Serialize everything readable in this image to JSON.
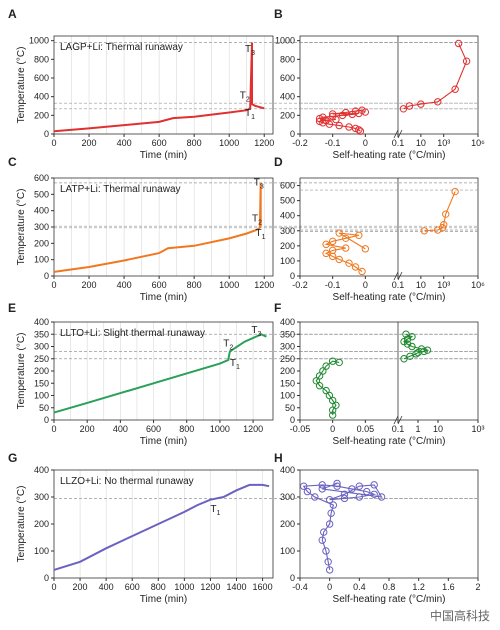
{
  "panels": [
    {
      "id": "A",
      "type": "line",
      "color": "#e03030",
      "annotation": "LAGP+Li: Thermal runaway",
      "xlabel": "Time (min)",
      "ylabel": "Temperature (°C)",
      "xlim": [
        0,
        1250
      ],
      "ylim": [
        0,
        1050
      ],
      "xticks": [
        0,
        200,
        400,
        600,
        800,
        1000,
        1200
      ],
      "yticks": [
        0,
        200,
        400,
        600,
        800,
        1000
      ],
      "vlines": [
        100,
        200,
        300,
        400,
        500,
        600,
        700,
        800,
        900,
        1000,
        1100,
        1200
      ],
      "hlines": [
        270,
        330,
        980
      ],
      "points": [
        [
          0,
          30
        ],
        [
          200,
          60
        ],
        [
          400,
          95
        ],
        [
          600,
          130
        ],
        [
          680,
          170
        ],
        [
          800,
          185
        ],
        [
          1000,
          230
        ],
        [
          1100,
          255
        ],
        [
          1110,
          265
        ],
        [
          1120,
          280
        ],
        [
          1130,
          980
        ],
        [
          1130,
          320
        ],
        [
          1150,
          300
        ],
        [
          1200,
          275
        ]
      ],
      "labels": [
        {
          "text": "T3",
          "x": 1090,
          "y": 880
        },
        {
          "text": "T2",
          "x": 1060,
          "y": 380
        },
        {
          "text": "T1",
          "x": 1090,
          "y": 195
        }
      ]
    },
    {
      "id": "B",
      "type": "scatter",
      "color": "#e03030",
      "xlabel": "Self-heating rate (°C/min)",
      "ylim": [
        0,
        1050
      ],
      "yticks": [
        0,
        200,
        400,
        600,
        800,
        1000
      ],
      "left": {
        "xlim": [
          -0.2,
          0.1
        ],
        "xticks": [
          -0.2,
          -0.1,
          0.0,
          0.1
        ],
        "points": [
          [
            -0.015,
            30
          ],
          [
            -0.02,
            45
          ],
          [
            -0.03,
            60
          ],
          [
            -0.05,
            75
          ],
          [
            -0.08,
            90
          ],
          [
            -0.11,
            105
          ],
          [
            -0.13,
            120
          ],
          [
            -0.14,
            135
          ],
          [
            -0.12,
            145
          ],
          [
            -0.09,
            155
          ],
          [
            -0.14,
            165
          ],
          [
            -0.13,
            180
          ],
          [
            -0.1,
            190
          ],
          [
            -0.07,
            200
          ],
          [
            -0.04,
            210
          ],
          [
            -0.02,
            220
          ],
          [
            -0.1,
            215
          ],
          [
            -0.06,
            230
          ],
          [
            -0.03,
            245
          ],
          [
            -0.01,
            255
          ],
          [
            0.0,
            235
          ]
        ]
      },
      "right": {
        "xlim_log": [
          -1,
          6
        ],
        "xticks": [
          0.1,
          10,
          1000,
          1000000
        ],
        "xtick_labels": [
          "0.1",
          "10",
          "10³",
          "10⁶"
        ],
        "points": [
          [
            0.3,
            270
          ],
          [
            1,
            300
          ],
          [
            10,
            320
          ],
          [
            300,
            345
          ],
          [
            10000,
            480
          ],
          [
            100000,
            780
          ],
          [
            20000,
            970
          ]
        ]
      },
      "hlines": [
        270,
        330,
        980
      ]
    },
    {
      "id": "C",
      "type": "line",
      "color": "#f07820",
      "annotation": "LATP+Li: Thermal runaway",
      "xlabel": "Time (min)",
      "ylabel": "Temperature (°C)",
      "xlim": [
        0,
        1250
      ],
      "ylim": [
        0,
        600
      ],
      "xticks": [
        0,
        200,
        400,
        600,
        800,
        1000,
        1200
      ],
      "yticks": [
        0,
        100,
        200,
        300,
        400,
        500,
        600
      ],
      "vlines": [
        100,
        200,
        300,
        400,
        500,
        600,
        700,
        800,
        900,
        1000,
        1100,
        1200
      ],
      "hlines": [
        295,
        305,
        570
      ],
      "points": [
        [
          0,
          25
        ],
        [
          200,
          55
        ],
        [
          400,
          95
        ],
        [
          600,
          140
        ],
        [
          650,
          170
        ],
        [
          800,
          185
        ],
        [
          1000,
          230
        ],
        [
          1100,
          260
        ],
        [
          1150,
          280
        ],
        [
          1170,
          290
        ],
        [
          1175,
          300
        ],
        [
          1180,
          570
        ],
        [
          1180,
          305
        ]
      ],
      "labels": [
        {
          "text": "T3",
          "x": 1140,
          "y": 555
        },
        {
          "text": "T2",
          "x": 1130,
          "y": 335
        },
        {
          "text": "T1",
          "x": 1150,
          "y": 245
        }
      ]
    },
    {
      "id": "D",
      "type": "scatter",
      "color": "#f07820",
      "xlabel": "Self-heating rate (°C/min)",
      "ylim": [
        0,
        650
      ],
      "yticks": [
        0,
        100,
        200,
        300,
        400,
        500,
        600
      ],
      "left": {
        "xlim": [
          -0.2,
          0.1
        ],
        "xticks": [
          -0.2,
          -0.1,
          0.0,
          0.1
        ],
        "points": [
          [
            -0.01,
            30
          ],
          [
            -0.03,
            60
          ],
          [
            -0.05,
            85
          ],
          [
            -0.08,
            110
          ],
          [
            -0.1,
            130
          ],
          [
            -0.12,
            150
          ],
          [
            -0.1,
            170
          ],
          [
            -0.06,
            185
          ],
          [
            -0.12,
            210
          ],
          [
            -0.1,
            230
          ],
          [
            -0.06,
            250
          ],
          [
            -0.02,
            270
          ],
          [
            -0.08,
            285
          ],
          [
            0.0,
            180
          ]
        ]
      },
      "right": {
        "xlim_log": [
          -1,
          6
        ],
        "xticks": [
          0.1,
          10,
          1000,
          1000000
        ],
        "xtick_labels": [
          "0.1",
          "10",
          "10³",
          "10⁶"
        ],
        "points": [
          [
            20,
            300
          ],
          [
            300,
            305
          ],
          [
            800,
            320
          ],
          [
            1000,
            340
          ],
          [
            1500,
            410
          ],
          [
            10000,
            560
          ]
        ]
      },
      "hlines": [
        295,
        305,
        570
      ]
    },
    {
      "id": "E",
      "type": "line",
      "color": "#2aa058",
      "annotation": "LLTO+Li: Slight thermal runaway",
      "xlabel": "Time (min)",
      "ylabel": "Temperature (°C)",
      "xlim": [
        0,
        1320
      ],
      "ylim": [
        0,
        400
      ],
      "xticks": [
        0,
        200,
        400,
        600,
        800,
        1000,
        1200
      ],
      "yticks": [
        0,
        50,
        100,
        150,
        200,
        250,
        300,
        350,
        400
      ],
      "vlines": [
        100,
        200,
        300,
        400,
        500,
        600,
        700,
        800,
        900,
        1000,
        1100,
        1200
      ],
      "hlines": [
        250,
        280,
        350
      ],
      "points": [
        [
          0,
          30
        ],
        [
          200,
          70
        ],
        [
          400,
          110
        ],
        [
          600,
          150
        ],
        [
          800,
          190
        ],
        [
          1000,
          230
        ],
        [
          1050,
          245
        ],
        [
          1060,
          280
        ],
        [
          1150,
          320
        ],
        [
          1250,
          350
        ],
        [
          1280,
          340
        ]
      ],
      "labels": [
        {
          "text": "T3",
          "x": 1190,
          "y": 355
        },
        {
          "text": "T2",
          "x": 1020,
          "y": 300
        },
        {
          "text": "T1",
          "x": 1060,
          "y": 220
        }
      ]
    },
    {
      "id": "F",
      "type": "scatter",
      "color": "#1f8a30",
      "xlabel": "Self-heating rate (°C/min)",
      "ylim": [
        0,
        400
      ],
      "yticks": [
        0,
        50,
        100,
        150,
        200,
        250,
        300,
        350,
        400
      ],
      "left": {
        "xlim": [
          -0.05,
          0.1
        ],
        "xticks": [
          -0.05,
          0.0,
          0.05,
          0.1
        ],
        "points": [
          [
            0.0,
            20
          ],
          [
            0.0,
            40
          ],
          [
            0.005,
            60
          ],
          [
            0.0,
            80
          ],
          [
            -0.005,
            100
          ],
          [
            -0.01,
            120
          ],
          [
            -0.02,
            140
          ],
          [
            -0.025,
            160
          ],
          [
            -0.02,
            180
          ],
          [
            -0.015,
            200
          ],
          [
            -0.01,
            220
          ],
          [
            0.0,
            240
          ],
          [
            0.01,
            235
          ]
        ]
      },
      "right": {
        "xlim_log": [
          -1,
          3
        ],
        "xticks": [
          0.1,
          1,
          10,
          1000
        ],
        "xtick_labels": [
          "0.1",
          "1",
          "10",
          "10³"
        ],
        "points": [
          [
            0.2,
            250
          ],
          [
            0.4,
            260
          ],
          [
            0.8,
            270
          ],
          [
            1,
            275
          ],
          [
            2,
            280
          ],
          [
            3,
            285
          ],
          [
            1.5,
            290
          ],
          [
            0.5,
            300
          ],
          [
            0.3,
            310
          ],
          [
            0.2,
            320
          ],
          [
            0.3,
            330
          ],
          [
            0.5,
            340
          ],
          [
            0.25,
            350
          ]
        ]
      },
      "hlines": [
        250,
        280,
        350
      ]
    },
    {
      "id": "G",
      "type": "line",
      "color": "#6a62c0",
      "annotation": "LLZO+Li: No thermal runaway",
      "xlabel": "Time (min)",
      "ylabel": "Temperature (°C)",
      "xlim": [
        0,
        1680
      ],
      "ylim": [
        0,
        400
      ],
      "xticks": [
        0,
        200,
        400,
        600,
        800,
        1000,
        1200,
        1400,
        1600
      ],
      "yticks": [
        0,
        100,
        200,
        300,
        400
      ],
      "vlines": [
        200,
        400,
        600,
        800,
        1000,
        1200,
        1400,
        1600
      ],
      "hlines": [
        295
      ],
      "points": [
        [
          0,
          30
        ],
        [
          200,
          60
        ],
        [
          400,
          110
        ],
        [
          600,
          155
        ],
        [
          800,
          200
        ],
        [
          1000,
          245
        ],
        [
          1100,
          270
        ],
        [
          1200,
          290
        ],
        [
          1300,
          300
        ],
        [
          1400,
          325
        ],
        [
          1500,
          345
        ],
        [
          1600,
          345
        ],
        [
          1650,
          340
        ]
      ],
      "labels": [
        {
          "text": "T1",
          "x": 1200,
          "y": 245
        }
      ]
    },
    {
      "id": "H",
      "type": "scatter",
      "color": "#6a62c0",
      "xlabel": "Self-heating rate (°C/min)",
      "ylim": [
        0,
        400
      ],
      "yticks": [
        0,
        100,
        200,
        300,
        400
      ],
      "xlim": [
        -0.4,
        2.0
      ],
      "xticks": [
        -0.4,
        0.0,
        0.4,
        0.8,
        1.2,
        1.6,
        2.0
      ],
      "points": [
        [
          0.0,
          30
        ],
        [
          -0.02,
          60
        ],
        [
          -0.05,
          100
        ],
        [
          -0.1,
          140
        ],
        [
          -0.08,
          170
        ],
        [
          0.0,
          200
        ],
        [
          0.02,
          240
        ],
        [
          0.05,
          270
        ],
        [
          -0.2,
          300
        ],
        [
          -0.3,
          320
        ],
        [
          -0.35,
          340
        ],
        [
          -0.1,
          345
        ],
        [
          0.1,
          340
        ],
        [
          0.3,
          330
        ],
        [
          0.5,
          320
        ],
        [
          0.6,
          310
        ],
        [
          0.4,
          300
        ],
        [
          0.2,
          295
        ],
        [
          0.0,
          290
        ],
        [
          0.2,
          310
        ],
        [
          0.4,
          340
        ],
        [
          0.6,
          345
        ],
        [
          0.7,
          300
        ],
        [
          -0.1,
          330
        ],
        [
          0.1,
          350
        ]
      ],
      "hlines": [
        295
      ]
    }
  ],
  "watermark": "中国高科技"
}
